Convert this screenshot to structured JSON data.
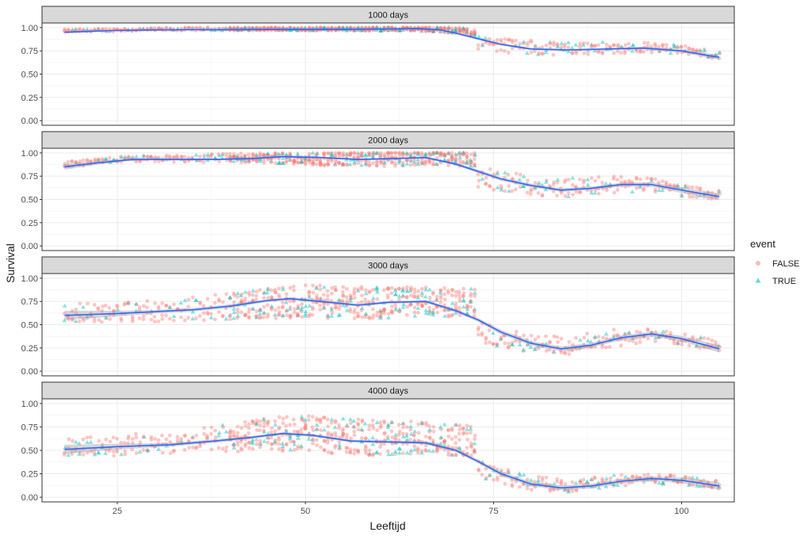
{
  "chart_data": {
    "type": "scatter",
    "xlabel": "Leeftijd",
    "ylabel": "Survival",
    "xlim": [
      15,
      107
    ],
    "ylim": [
      -0.05,
      1.05
    ],
    "x_ticks": [
      25,
      50,
      75,
      100
    ],
    "y_ticks": [
      0.0,
      0.25,
      0.5,
      0.75,
      1.0
    ],
    "y_tick_labels": [
      "0.00",
      "0.25",
      "0.50",
      "0.75",
      "1.00"
    ],
    "grid": true,
    "legend": {
      "title": "event",
      "placement": "right",
      "entries": [
        {
          "label": "FALSE",
          "color": "#F8766D",
          "shape": "circle"
        },
        {
          "label": "TRUE",
          "color": "#00BFC4",
          "shape": "triangle"
        }
      ]
    },
    "smooth_color": "#3366FF",
    "band_color": "#999999",
    "panels": [
      {
        "label": "1000 days",
        "smooth": [
          [
            18,
            0.95
          ],
          [
            25,
            0.97
          ],
          [
            30,
            0.975
          ],
          [
            35,
            0.978
          ],
          [
            40,
            0.978
          ],
          [
            45,
            0.98
          ],
          [
            50,
            0.98
          ],
          [
            55,
            0.98
          ],
          [
            60,
            0.985
          ],
          [
            65,
            0.99
          ],
          [
            68,
            0.975
          ],
          [
            70,
            0.94
          ],
          [
            73,
            0.88
          ],
          [
            76,
            0.82
          ],
          [
            80,
            0.77
          ],
          [
            85,
            0.76
          ],
          [
            90,
            0.77
          ],
          [
            95,
            0.78
          ],
          [
            100,
            0.75
          ],
          [
            105,
            0.68
          ]
        ],
        "band": [
          0.01,
          0.005,
          0.004,
          0.004,
          0.004,
          0.004,
          0.004,
          0.004,
          0.005,
          0.006,
          0.008,
          0.01,
          0.012,
          0.012,
          0.012,
          0.012,
          0.012,
          0.015,
          0.02,
          0.025
        ],
        "scatter_center": [
          [
            18,
            0.96
          ],
          [
            25,
            0.97
          ],
          [
            35,
            0.98
          ],
          [
            45,
            0.98
          ],
          [
            55,
            0.98
          ],
          [
            65,
            0.98
          ],
          [
            70,
            0.96
          ],
          [
            72.5,
            0.93
          ],
          [
            73,
            0.82
          ],
          [
            75,
            0.8
          ],
          [
            80,
            0.76
          ],
          [
            85,
            0.76
          ],
          [
            90,
            0.76
          ],
          [
            95,
            0.77
          ],
          [
            100,
            0.75
          ],
          [
            105,
            0.69
          ]
        ],
        "scatter_spread": [
          0.02,
          0.02,
          0.02,
          0.02,
          0.025,
          0.03,
          0.04,
          0.05,
          0.09,
          0.1,
          0.1,
          0.09,
          0.08,
          0.07,
          0.06,
          0.05
        ]
      },
      {
        "label": "2000 days",
        "smooth": [
          [
            18,
            0.85
          ],
          [
            22,
            0.89
          ],
          [
            27,
            0.93
          ],
          [
            32,
            0.93
          ],
          [
            38,
            0.93
          ],
          [
            43,
            0.94
          ],
          [
            47,
            0.96
          ],
          [
            52,
            0.95
          ],
          [
            57,
            0.93
          ],
          [
            62,
            0.94
          ],
          [
            66,
            0.95
          ],
          [
            70,
            0.88
          ],
          [
            73,
            0.8
          ],
          [
            76,
            0.72
          ],
          [
            80,
            0.65
          ],
          [
            84,
            0.6
          ],
          [
            88,
            0.62
          ],
          [
            92,
            0.66
          ],
          [
            96,
            0.66
          ],
          [
            100,
            0.6
          ],
          [
            105,
            0.53
          ]
        ],
        "band": [
          0.03,
          0.02,
          0.012,
          0.01,
          0.01,
          0.01,
          0.01,
          0.01,
          0.01,
          0.01,
          0.012,
          0.015,
          0.02,
          0.02,
          0.02,
          0.02,
          0.02,
          0.02,
          0.025,
          0.03,
          0.035
        ],
        "scatter_center": [
          [
            18,
            0.86
          ],
          [
            25,
            0.92
          ],
          [
            35,
            0.93
          ],
          [
            45,
            0.93
          ],
          [
            55,
            0.91
          ],
          [
            62,
            0.92
          ],
          [
            68,
            0.93
          ],
          [
            72.5,
            0.9
          ],
          [
            73,
            0.7
          ],
          [
            75,
            0.68
          ],
          [
            80,
            0.62
          ],
          [
            85,
            0.6
          ],
          [
            90,
            0.63
          ],
          [
            95,
            0.64
          ],
          [
            100,
            0.58
          ],
          [
            105,
            0.53
          ]
        ],
        "scatter_spread": [
          0.04,
          0.04,
          0.05,
          0.07,
          0.1,
          0.12,
          0.1,
          0.1,
          0.12,
          0.14,
          0.13,
          0.13,
          0.12,
          0.1,
          0.08,
          0.06
        ]
      },
      {
        "label": "3000 days",
        "smooth": [
          [
            18,
            0.6
          ],
          [
            25,
            0.62
          ],
          [
            30,
            0.64
          ],
          [
            35,
            0.66
          ],
          [
            40,
            0.7
          ],
          [
            45,
            0.76
          ],
          [
            48,
            0.78
          ],
          [
            52,
            0.75
          ],
          [
            57,
            0.71
          ],
          [
            61,
            0.74
          ],
          [
            66,
            0.75
          ],
          [
            70,
            0.65
          ],
          [
            73,
            0.55
          ],
          [
            76,
            0.42
          ],
          [
            80,
            0.3
          ],
          [
            84,
            0.24
          ],
          [
            88,
            0.28
          ],
          [
            92,
            0.36
          ],
          [
            96,
            0.4
          ],
          [
            100,
            0.35
          ],
          [
            105,
            0.24
          ]
        ],
        "band": [
          0.05,
          0.03,
          0.02,
          0.02,
          0.02,
          0.015,
          0.015,
          0.015,
          0.015,
          0.015,
          0.015,
          0.02,
          0.02,
          0.025,
          0.025,
          0.025,
          0.025,
          0.025,
          0.025,
          0.03,
          0.04
        ],
        "scatter_center": [
          [
            18,
            0.6
          ],
          [
            25,
            0.6
          ],
          [
            35,
            0.63
          ],
          [
            45,
            0.68
          ],
          [
            50,
            0.7
          ],
          [
            58,
            0.68
          ],
          [
            65,
            0.7
          ],
          [
            72.5,
            0.68
          ],
          [
            73,
            0.4
          ],
          [
            75,
            0.35
          ],
          [
            80,
            0.27
          ],
          [
            85,
            0.25
          ],
          [
            90,
            0.32
          ],
          [
            95,
            0.36
          ],
          [
            100,
            0.33
          ],
          [
            105,
            0.25
          ]
        ],
        "scatter_spread": [
          0.12,
          0.14,
          0.16,
          0.2,
          0.22,
          0.22,
          0.2,
          0.2,
          0.14,
          0.14,
          0.12,
          0.12,
          0.12,
          0.1,
          0.08,
          0.07
        ]
      },
      {
        "label": "4000 days",
        "smooth": [
          [
            18,
            0.51
          ],
          [
            25,
            0.54
          ],
          [
            32,
            0.56
          ],
          [
            38,
            0.6
          ],
          [
            43,
            0.64
          ],
          [
            47,
            0.68
          ],
          [
            51,
            0.66
          ],
          [
            56,
            0.6
          ],
          [
            61,
            0.59
          ],
          [
            66,
            0.58
          ],
          [
            70,
            0.5
          ],
          [
            73,
            0.38
          ],
          [
            76,
            0.25
          ],
          [
            80,
            0.14
          ],
          [
            84,
            0.1
          ],
          [
            88,
            0.12
          ],
          [
            92,
            0.17
          ],
          [
            96,
            0.2
          ],
          [
            100,
            0.18
          ],
          [
            105,
            0.12
          ]
        ],
        "band": [
          0.05,
          0.03,
          0.02,
          0.02,
          0.015,
          0.015,
          0.015,
          0.015,
          0.015,
          0.015,
          0.02,
          0.02,
          0.025,
          0.025,
          0.025,
          0.025,
          0.025,
          0.025,
          0.03,
          0.04
        ],
        "scatter_center": [
          [
            18,
            0.5
          ],
          [
            25,
            0.52
          ],
          [
            35,
            0.56
          ],
          [
            45,
            0.62
          ],
          [
            50,
            0.62
          ],
          [
            58,
            0.58
          ],
          [
            65,
            0.58
          ],
          [
            72.5,
            0.55
          ],
          [
            73,
            0.3
          ],
          [
            75,
            0.22
          ],
          [
            80,
            0.13
          ],
          [
            85,
            0.1
          ],
          [
            90,
            0.15
          ],
          [
            95,
            0.18
          ],
          [
            100,
            0.17
          ],
          [
            105,
            0.12
          ]
        ],
        "scatter_spread": [
          0.12,
          0.14,
          0.16,
          0.22,
          0.24,
          0.24,
          0.22,
          0.2,
          0.12,
          0.12,
          0.1,
          0.08,
          0.08,
          0.07,
          0.06,
          0.05
        ]
      }
    ]
  }
}
